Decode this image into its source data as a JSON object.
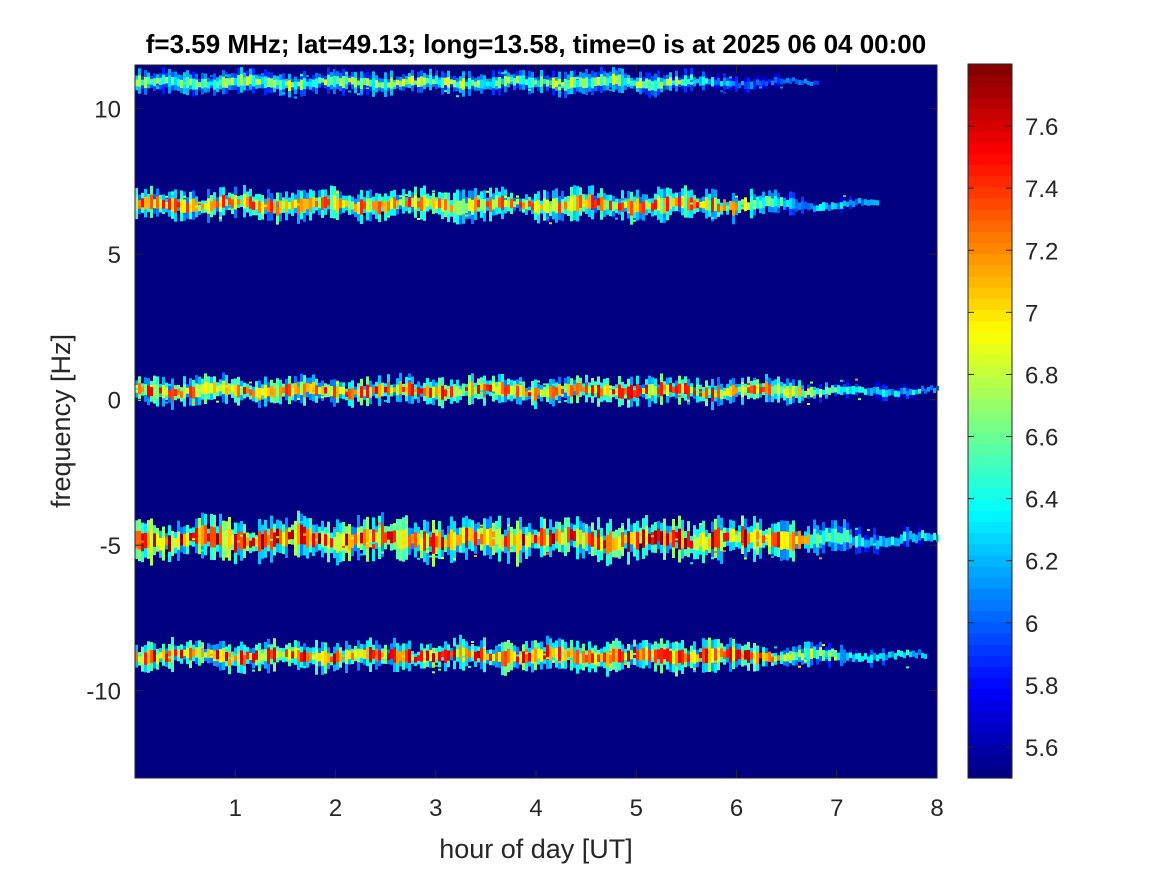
{
  "chart_data": {
    "type": "heatmap",
    "title": "f=3.59 MHz;  lat=49.13; long=13.58, time=0 is at 2025 06 04 00:00",
    "xlabel": "hour of day [UT]",
    "ylabel": "frequency [Hz]",
    "xlim": [
      0,
      8
    ],
    "ylim": [
      -13,
      11.5
    ],
    "xticks": [
      "1",
      "2",
      "3",
      "4",
      "5",
      "6",
      "7",
      "8"
    ],
    "yticks": [
      "-10",
      "-5",
      "0",
      "5",
      "10"
    ],
    "colorbar": {
      "range": [
        5.5,
        7.8
      ],
      "ticks": [
        "5.6",
        "5.8",
        "6",
        "6.2",
        "6.4",
        "6.6",
        "6.8",
        "7",
        "7.2",
        "7.4",
        "7.6"
      ],
      "colormap": "jet"
    },
    "background_value": 5.5,
    "traces": [
      {
        "center_hz": 10.9,
        "x_start": 0.0,
        "x_end": 6.8,
        "peak": 6.9,
        "width_hz": 0.35
      },
      {
        "center_hz": 6.7,
        "x_start": 0.0,
        "x_end": 7.4,
        "peak": 7.5,
        "width_hz": 0.45
      },
      {
        "center_hz": 0.3,
        "x_start": 0.0,
        "x_end": 8.0,
        "peak": 7.6,
        "width_hz": 0.4
      },
      {
        "center_hz": -4.8,
        "x_start": 0.0,
        "x_end": 8.0,
        "peak": 7.8,
        "width_hz": 0.6
      },
      {
        "center_hz": -8.8,
        "x_start": 0.0,
        "x_end": 7.9,
        "peak": 7.7,
        "width_hz": 0.45
      }
    ]
  }
}
